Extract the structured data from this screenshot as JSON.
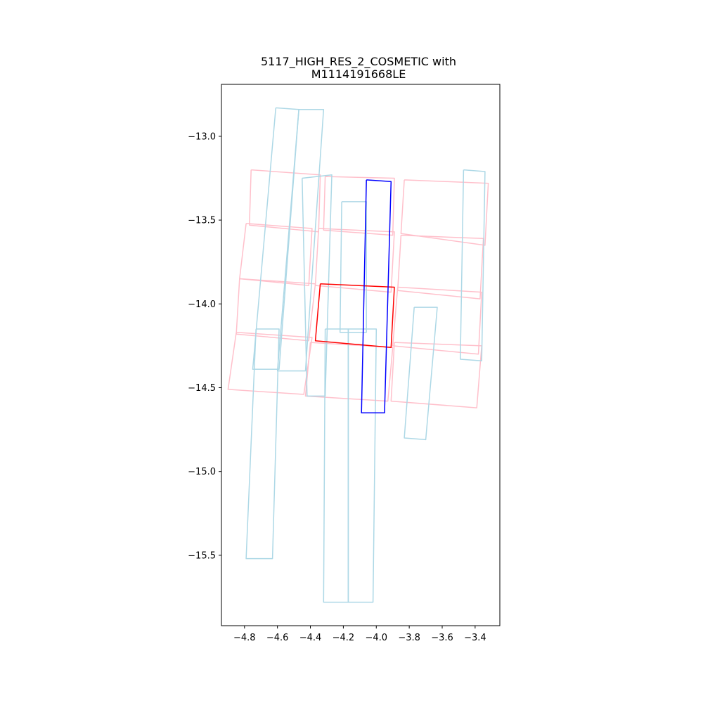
{
  "chart_data": {
    "type": "line",
    "title_lines": [
      "5117_HIGH_RES_2_COSMETIC with",
      "M1114191668LE"
    ],
    "xlabel": "",
    "ylabel": "",
    "xlim": [
      -4.94,
      -3.25
    ],
    "ylim": [
      -15.92,
      -12.69
    ],
    "x_ticks": [
      -4.8,
      -4.6,
      -4.4,
      -4.2,
      -4.0,
      -3.8,
      -3.6,
      -3.4
    ],
    "x_tick_labels": [
      "−4.8",
      "−4.6",
      "−4.4",
      "−4.2",
      "−4.0",
      "−3.8",
      "−3.6",
      "−3.4"
    ],
    "y_ticks": [
      -13.0,
      -13.5,
      -14.0,
      -14.5,
      -15.0,
      -15.5
    ],
    "y_tick_labels": [
      "−13.0",
      "−13.5",
      "−14.0",
      "−14.5",
      "−15.0",
      "−15.5"
    ],
    "grid": false,
    "colors": {
      "pink": "#ffc0cb",
      "lightblue": "#add8e6",
      "red": "#ff0000",
      "blue": "#0000ff",
      "axis": "#000000"
    },
    "series": [
      {
        "color": "pink",
        "points": [
          [
            -4.76,
            -13.2
          ],
          [
            -4.34,
            -13.23
          ],
          [
            -4.35,
            -13.57
          ],
          [
            -4.77,
            -13.53
          ],
          [
            -4.76,
            -13.2
          ]
        ]
      },
      {
        "color": "pink",
        "points": [
          [
            -4.31,
            -13.24
          ],
          [
            -3.89,
            -13.25
          ],
          [
            -3.9,
            -13.59
          ],
          [
            -4.32,
            -13.56
          ],
          [
            -4.31,
            -13.24
          ]
        ]
      },
      {
        "color": "pink",
        "points": [
          [
            -3.83,
            -13.26
          ],
          [
            -3.32,
            -13.28
          ],
          [
            -3.34,
            -13.65
          ],
          [
            -3.85,
            -13.58
          ],
          [
            -3.83,
            -13.26
          ]
        ]
      },
      {
        "color": "pink",
        "points": [
          [
            -4.79,
            -13.52
          ],
          [
            -4.39,
            -13.55
          ],
          [
            -4.41,
            -13.89
          ],
          [
            -4.83,
            -13.85
          ],
          [
            -4.79,
            -13.52
          ]
        ]
      },
      {
        "color": "pink",
        "points": [
          [
            -4.35,
            -13.55
          ],
          [
            -3.89,
            -13.57
          ],
          [
            -3.91,
            -13.93
          ],
          [
            -4.37,
            -13.89
          ],
          [
            -4.35,
            -13.55
          ]
        ]
      },
      {
        "color": "pink",
        "points": [
          [
            -3.85,
            -13.59
          ],
          [
            -3.35,
            -13.61
          ],
          [
            -3.37,
            -13.97
          ],
          [
            -3.87,
            -13.92
          ],
          [
            -3.85,
            -13.59
          ]
        ]
      },
      {
        "color": "pink",
        "points": [
          [
            -4.83,
            -13.85
          ],
          [
            -4.37,
            -13.88
          ],
          [
            -4.41,
            -14.22
          ],
          [
            -4.85,
            -14.18
          ],
          [
            -4.83,
            -13.85
          ]
        ]
      },
      {
        "color": "pink",
        "points": [
          [
            -3.87,
            -13.9
          ],
          [
            -3.36,
            -13.93
          ],
          [
            -3.38,
            -14.3
          ],
          [
            -3.9,
            -14.25
          ],
          [
            -3.87,
            -13.9
          ]
        ]
      },
      {
        "color": "pink",
        "points": [
          [
            -4.85,
            -14.17
          ],
          [
            -4.39,
            -14.2
          ],
          [
            -4.44,
            -14.54
          ],
          [
            -4.9,
            -14.51
          ],
          [
            -4.85,
            -14.17
          ]
        ]
      },
      {
        "color": "pink",
        "points": [
          [
            -4.4,
            -14.23
          ],
          [
            -3.9,
            -14.26
          ],
          [
            -3.93,
            -14.58
          ],
          [
            -4.43,
            -14.55
          ],
          [
            -4.4,
            -14.23
          ]
        ]
      },
      {
        "color": "pink",
        "points": [
          [
            -3.89,
            -14.23
          ],
          [
            -3.36,
            -14.25
          ],
          [
            -3.39,
            -14.62
          ],
          [
            -3.91,
            -14.58
          ],
          [
            -3.89,
            -14.23
          ]
        ]
      },
      {
        "color": "lightblue",
        "points": [
          [
            -4.61,
            -12.83
          ],
          [
            -4.47,
            -12.84
          ],
          [
            -4.59,
            -14.39
          ],
          [
            -4.75,
            -14.39
          ],
          [
            -4.61,
            -12.83
          ]
        ]
      },
      {
        "color": "lightblue",
        "points": [
          [
            -4.47,
            -12.84
          ],
          [
            -4.32,
            -12.84
          ],
          [
            -4.43,
            -14.4
          ],
          [
            -4.6,
            -14.4
          ],
          [
            -4.47,
            -12.84
          ]
        ]
      },
      {
        "color": "lightblue",
        "points": [
          [
            -4.45,
            -13.25
          ],
          [
            -4.27,
            -13.23
          ],
          [
            -4.31,
            -14.55
          ],
          [
            -4.42,
            -14.55
          ],
          [
            -4.45,
            -13.25
          ]
        ]
      },
      {
        "color": "lightblue",
        "points": [
          [
            -4.21,
            -13.39
          ],
          [
            -4.06,
            -13.39
          ],
          [
            -4.06,
            -14.17
          ],
          [
            -4.22,
            -14.17
          ],
          [
            -4.21,
            -13.39
          ]
        ]
      },
      {
        "color": "lightblue",
        "points": [
          [
            -4.73,
            -14.15
          ],
          [
            -4.59,
            -14.15
          ],
          [
            -4.63,
            -15.52
          ],
          [
            -4.79,
            -15.52
          ],
          [
            -4.73,
            -14.15
          ]
        ]
      },
      {
        "color": "lightblue",
        "points": [
          [
            -4.31,
            -14.15
          ],
          [
            -4.17,
            -14.15
          ],
          [
            -4.17,
            -15.78
          ],
          [
            -4.32,
            -15.78
          ],
          [
            -4.31,
            -14.15
          ]
        ]
      },
      {
        "color": "lightblue",
        "points": [
          [
            -4.17,
            -14.15
          ],
          [
            -4.0,
            -14.15
          ],
          [
            -4.02,
            -15.78
          ],
          [
            -4.17,
            -15.78
          ],
          [
            -4.17,
            -14.15
          ]
        ]
      },
      {
        "color": "lightblue",
        "points": [
          [
            -3.77,
            -14.02
          ],
          [
            -3.63,
            -14.02
          ],
          [
            -3.7,
            -14.81
          ],
          [
            -3.83,
            -14.8
          ],
          [
            -3.77,
            -14.02
          ]
        ]
      },
      {
        "color": "lightblue",
        "points": [
          [
            -3.47,
            -13.2
          ],
          [
            -3.34,
            -13.21
          ],
          [
            -3.36,
            -14.34
          ],
          [
            -3.49,
            -14.33
          ],
          [
            -3.47,
            -13.2
          ]
        ]
      },
      {
        "color": "red",
        "points": [
          [
            -4.34,
            -13.88
          ],
          [
            -3.89,
            -13.9
          ],
          [
            -3.91,
            -14.26
          ],
          [
            -4.37,
            -14.22
          ],
          [
            -4.34,
            -13.88
          ]
        ]
      },
      {
        "color": "blue",
        "points": [
          [
            -4.06,
            -13.26
          ],
          [
            -3.91,
            -13.27
          ],
          [
            -3.95,
            -14.65
          ],
          [
            -4.09,
            -14.65
          ],
          [
            -4.06,
            -13.26
          ]
        ]
      }
    ]
  }
}
